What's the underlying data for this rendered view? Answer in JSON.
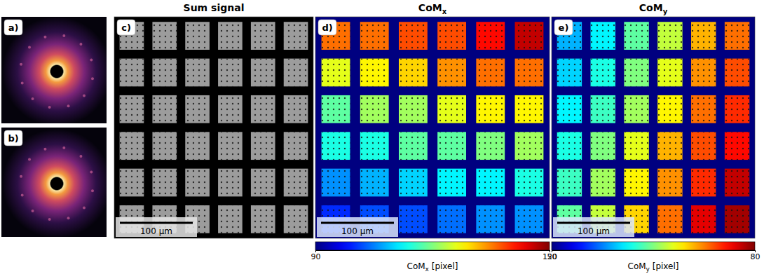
{
  "chart_data": [
    {
      "type": "image",
      "label": "a)"
    },
    {
      "type": "image",
      "label": "b)"
    },
    {
      "type": "image",
      "label": "c)",
      "title": "Sum signal",
      "scale_bar": "100 μm"
    },
    {
      "type": "heatmap",
      "label": "d)",
      "title": "CoM",
      "title_subscript": "x",
      "scale_bar": "100 μm",
      "tick_labels": false,
      "values": [
        [
          113,
          113,
          114,
          114,
          116,
          118
        ],
        [
          108,
          109,
          110,
          112,
          113,
          113
        ],
        [
          104,
          106,
          106,
          108,
          109,
          109
        ],
        [
          102,
          102,
          104,
          104,
          105,
          106
        ],
        [
          98,
          99,
          100,
          101,
          101,
          102
        ],
        [
          95,
          96,
          96,
          97,
          98,
          98
        ]
      ],
      "colorbar": {
        "range": [
          90,
          120
        ],
        "ticks": [
          90,
          120
        ],
        "label": "CoM",
        "label_subscript": "x",
        "unit": "[pixel]"
      }
    },
    {
      "type": "heatmap",
      "label": "e)",
      "title": "CoM",
      "title_subscript": "y",
      "scale_bar": "100 μm",
      "tick_labels": false,
      "values": [
        [
          59,
          61,
          64,
          67,
          71,
          73
        ],
        [
          60,
          62,
          65,
          68,
          72,
          74
        ],
        [
          61,
          63,
          66,
          69,
          73,
          75
        ],
        [
          62,
          65,
          68,
          71,
          74,
          76
        ],
        [
          63,
          66,
          69,
          72,
          75,
          78
        ],
        [
          64,
          67,
          70,
          73,
          77,
          79
        ]
      ],
      "colorbar": {
        "range": [
          50,
          80
        ],
        "ticks": [
          50,
          80
        ],
        "label": "CoM",
        "label_subscript": "y",
        "unit": "[pixel]"
      }
    }
  ]
}
